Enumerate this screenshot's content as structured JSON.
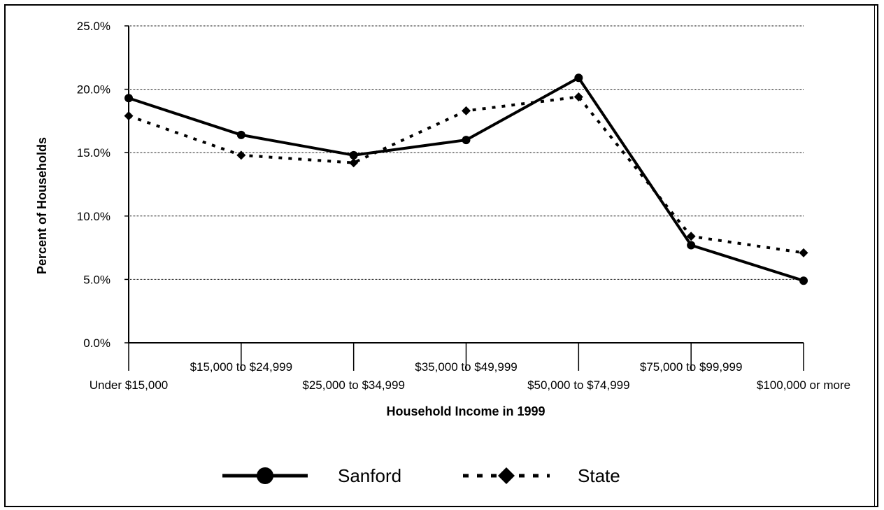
{
  "chart_data": {
    "type": "line",
    "xlabel": "Household Income in 1999",
    "ylabel": "Percent of Households",
    "ylim": [
      0,
      25
    ],
    "yticks": [
      "0.0%",
      "5.0%",
      "10.0%",
      "15.0%",
      "20.0%",
      "25.0%"
    ],
    "categories": [
      "Under $15,000",
      "$15,000 to $24,999",
      "$25,000 to $34,999",
      "$35,000 to $49,999",
      "$50,000 to $74,999",
      "$75,000 to $99,999",
      "$100,000 or more"
    ],
    "series": [
      {
        "name": "Sanford",
        "values": [
          19.3,
          16.4,
          14.8,
          16.0,
          20.9,
          7.7,
          4.9
        ],
        "style": "solid",
        "marker": "circle",
        "color": "#000000"
      },
      {
        "name": "State",
        "values": [
          17.9,
          14.8,
          14.2,
          18.3,
          19.4,
          8.4,
          7.1
        ],
        "style": "dotted",
        "marker": "diamond",
        "color": "#000000"
      }
    ],
    "grid": true,
    "legend_position": "bottom"
  }
}
